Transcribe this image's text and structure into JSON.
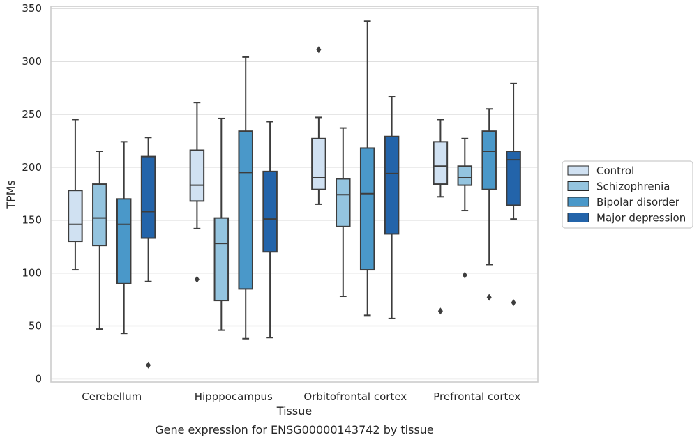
{
  "chart_data": {
    "type": "box",
    "caption": "Gene expression for ENSG00000143742 by tissue",
    "xlabel": "Tissue",
    "ylabel": "TPMs",
    "ylim": [
      -3,
      352
    ],
    "yticks": [
      0,
      50,
      100,
      150,
      200,
      250,
      300,
      350
    ],
    "grid": "horizontal",
    "legend_position": "right",
    "categories": [
      "Cerebellum",
      "Hipppocampus",
      "Orbitofrontal cortex",
      "Prefrontal cortex"
    ],
    "series": [
      {
        "name": "Control",
        "color": "#d0e1f2",
        "boxes": [
          {
            "whisker_low": 103,
            "q1": 130,
            "median": 146,
            "q3": 178,
            "whisker_high": 245,
            "outliers": []
          },
          {
            "whisker_low": 142,
            "q1": 168,
            "median": 183,
            "q3": 216,
            "whisker_high": 261,
            "outliers": [
              94
            ]
          },
          {
            "whisker_low": 165,
            "q1": 179,
            "median": 190,
            "q3": 227,
            "whisker_high": 247,
            "outliers": [
              311
            ]
          },
          {
            "whisker_low": 172,
            "q1": 184,
            "median": 201,
            "q3": 224,
            "whisker_high": 245,
            "outliers": [
              64
            ]
          }
        ]
      },
      {
        "name": "Schizophrenia",
        "color": "#94c4df",
        "boxes": [
          {
            "whisker_low": 47,
            "q1": 126,
            "median": 152,
            "q3": 184,
            "whisker_high": 215,
            "outliers": []
          },
          {
            "whisker_low": 46,
            "q1": 74,
            "median": 128,
            "q3": 152,
            "whisker_high": 246,
            "outliers": []
          },
          {
            "whisker_low": 78,
            "q1": 144,
            "median": 174,
            "q3": 189,
            "whisker_high": 237,
            "outliers": []
          },
          {
            "whisker_low": 159,
            "q1": 183,
            "median": 190,
            "q3": 201,
            "whisker_high": 227,
            "outliers": [
              98
            ]
          }
        ]
      },
      {
        "name": "Bipolar disorder",
        "color": "#4a98c9",
        "boxes": [
          {
            "whisker_low": 43,
            "q1": 90,
            "median": 146,
            "q3": 170,
            "whisker_high": 224,
            "outliers": []
          },
          {
            "whisker_low": 38,
            "q1": 85,
            "median": 195,
            "q3": 234,
            "whisker_high": 304,
            "outliers": []
          },
          {
            "whisker_low": 60,
            "q1": 103,
            "median": 175,
            "q3": 218,
            "whisker_high": 338,
            "outliers": []
          },
          {
            "whisker_low": 108,
            "q1": 179,
            "median": 215,
            "q3": 234,
            "whisker_high": 255,
            "outliers": [
              77
            ]
          }
        ]
      },
      {
        "name": "Major depression",
        "color": "#2364aa",
        "boxes": [
          {
            "whisker_low": 92,
            "q1": 133,
            "median": 158,
            "q3": 210,
            "whisker_high": 228,
            "outliers": [
              13
            ]
          },
          {
            "whisker_low": 39,
            "q1": 120,
            "median": 151,
            "q3": 196,
            "whisker_high": 243,
            "outliers": []
          },
          {
            "whisker_low": 57,
            "q1": 137,
            "median": 194,
            "q3": 229,
            "whisker_high": 267,
            "outliers": []
          },
          {
            "whisker_low": 151,
            "q1": 164,
            "median": 207,
            "q3": 215,
            "whisker_high": 279,
            "outliers": [
              72
            ]
          }
        ]
      }
    ]
  }
}
